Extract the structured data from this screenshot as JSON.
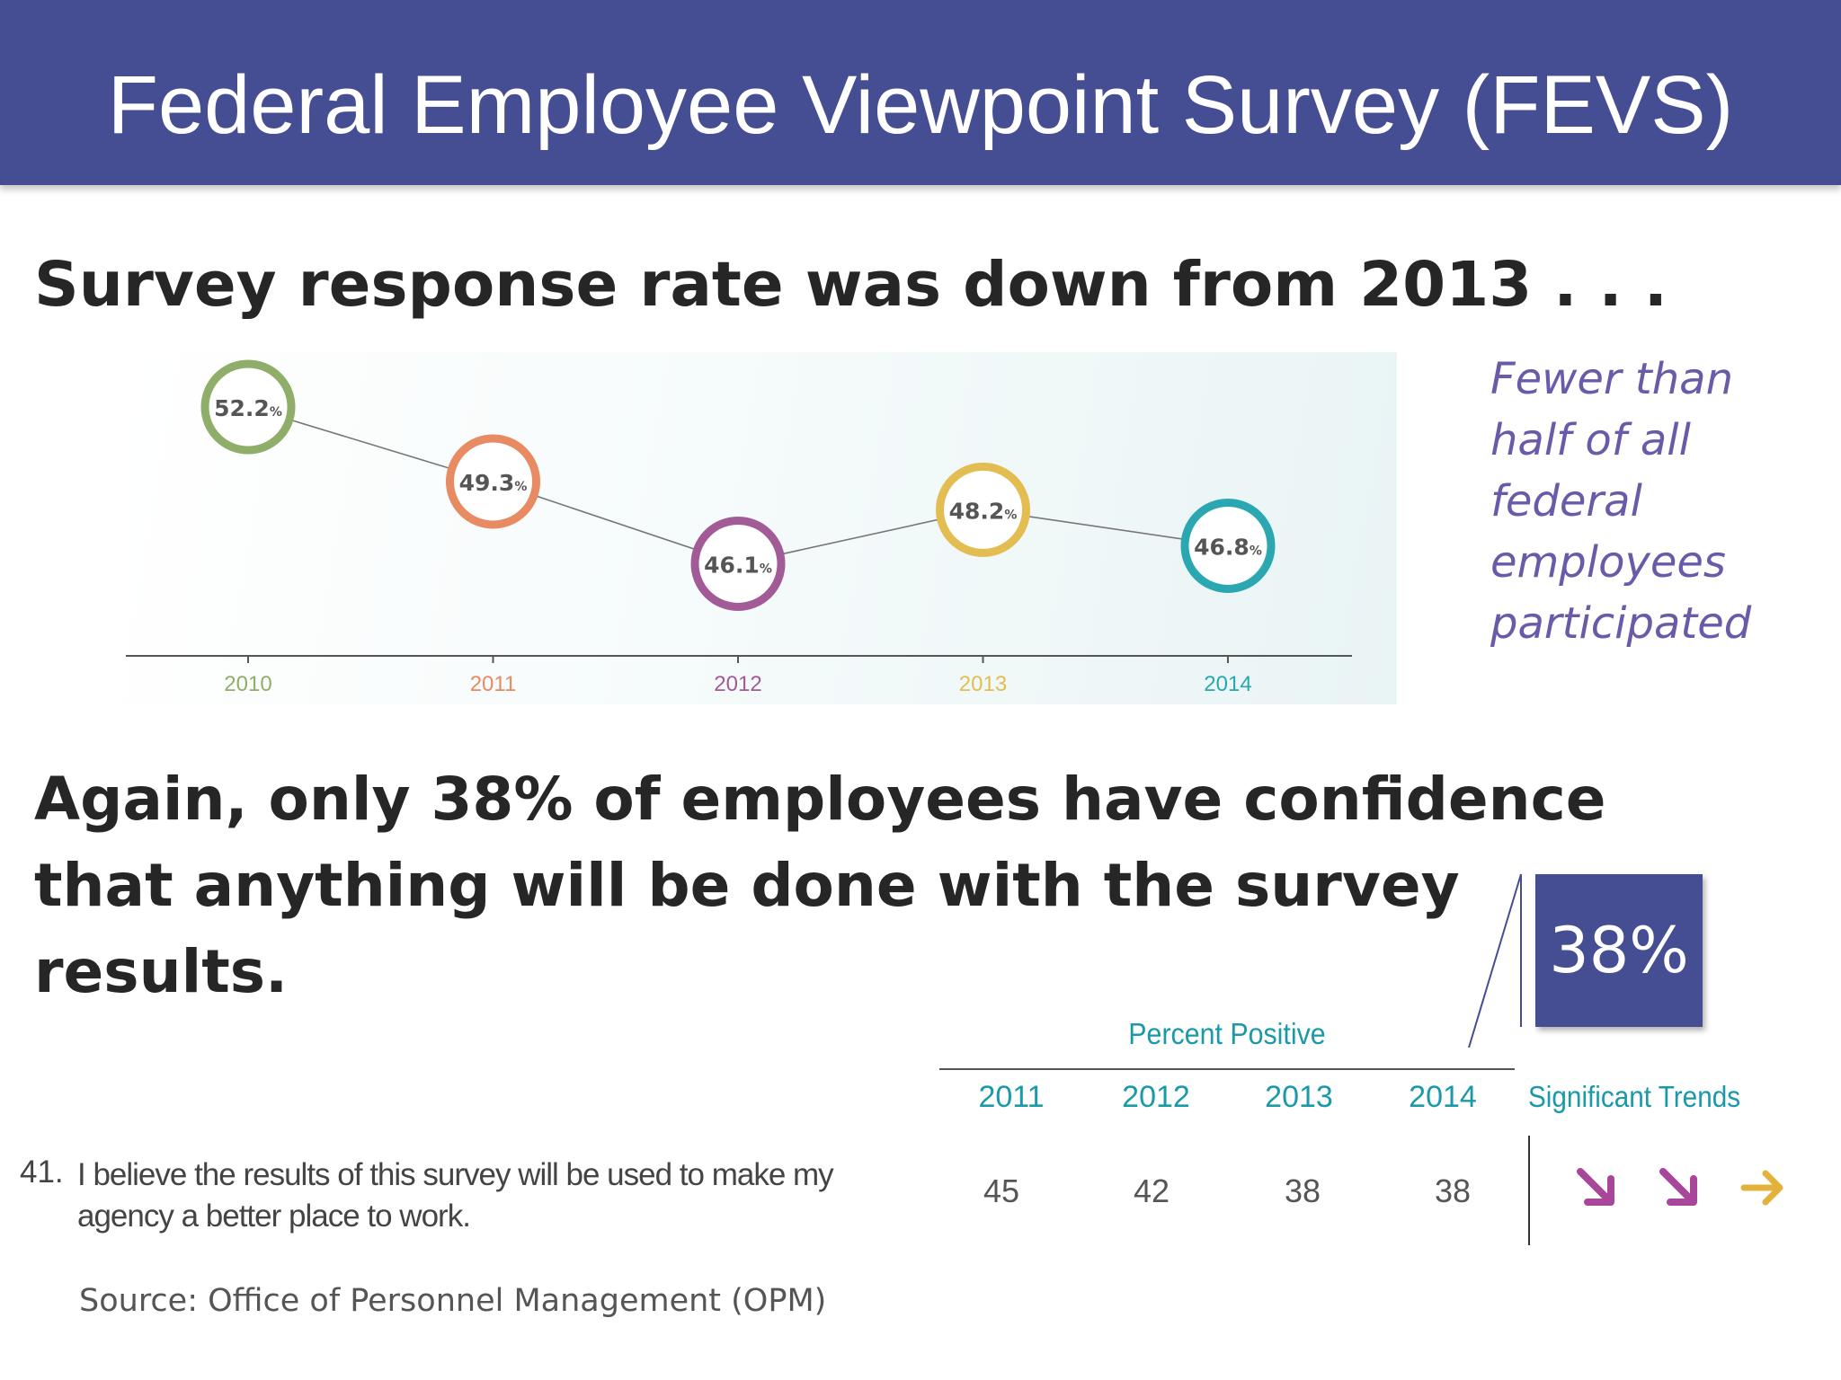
{
  "header": {
    "title": "Federal Employee Viewpoint Survey (FEVS)"
  },
  "heading1": "Survey response rate was down from 2013 . . .",
  "sidenote": "Fewer than half of all federal employees participated",
  "heading2": "Again, only 38% of employees have confidence that anything will be done with the survey results.",
  "callout": "38%",
  "chart_data": {
    "type": "line",
    "categories": [
      "2010",
      "2011",
      "2012",
      "2013",
      "2014"
    ],
    "values": [
      52.2,
      49.3,
      46.1,
      48.2,
      46.8
    ],
    "labels": [
      "52.2",
      "49.3",
      "46.1",
      "48.2",
      "46.8"
    ],
    "unit": "%",
    "colors": [
      "#8fae6a",
      "#e88a62",
      "#a35b98",
      "#e3bd52",
      "#2aa7b0"
    ],
    "grid": false,
    "legend": "none"
  },
  "table": {
    "group_label": "Percent Positive",
    "years": [
      "2011",
      "2012",
      "2013",
      "2014"
    ],
    "trend_label": "Significant Trends",
    "question_number": "41.",
    "question_text": "I believe the results of this survey will be used to make my agency a better place to work.",
    "values": [
      "45",
      "42",
      "38",
      "38"
    ],
    "trends": [
      {
        "icon": "arrow-down-right-icon",
        "color": "#a8479a"
      },
      {
        "icon": "arrow-down-right-icon",
        "color": "#a8479a"
      },
      {
        "icon": "arrow-right-icon",
        "color": "#e3b23c"
      }
    ]
  },
  "source": "Source: Office of Personnel Management (OPM)"
}
